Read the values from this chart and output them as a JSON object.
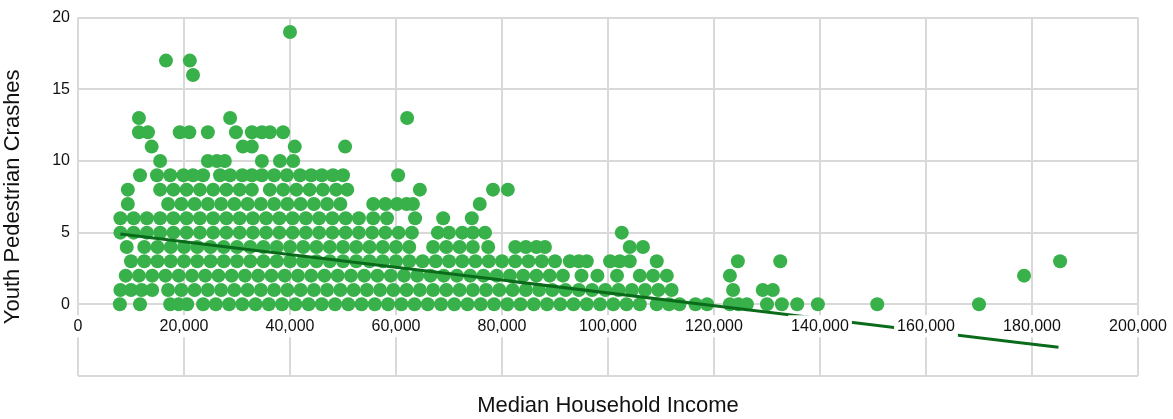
{
  "chart_data": {
    "type": "scatter",
    "xlabel": "Median Household Income",
    "ylabel": "Youth Pedestrian Crashes",
    "xlim": [
      0,
      200000
    ],
    "ylim": [
      -5,
      20
    ],
    "xticks": [
      0,
      {
        "value": 20000,
        "label": "20,000"
      },
      {
        "value": 40000,
        "label": "40,000"
      },
      {
        "value": 60000,
        "label": "60,000"
      },
      {
        "value": 80000,
        "label": "80,000"
      },
      {
        "value": 100000,
        "label": "100,000"
      },
      {
        "value": 120000,
        "label": "120,000"
      },
      {
        "value": 140000,
        "label": "140,000"
      },
      {
        "value": 160000,
        "label": "160,000"
      },
      {
        "value": 180000,
        "label": "180,000"
      },
      {
        "value": 200000,
        "label": "200,000"
      }
    ],
    "yticks": [
      {
        "value": -5,
        "label": null
      },
      0,
      5,
      10,
      15,
      20
    ],
    "grid": true,
    "marker": "circle",
    "series": [
      {
        "color": "#39b14a",
        "x": [
          7900,
          11700,
          17400,
          19000,
          20600,
          23600,
          26000,
          28500,
          31000,
          33500,
          36000,
          38500,
          41000,
          43500,
          46000,
          48500,
          51000,
          53500,
          56000,
          58500,
          61000,
          63500,
          66000,
          68500,
          71000,
          73500,
          76000,
          78500,
          81000,
          83500,
          86000,
          88500,
          91000,
          93500,
          96000,
          98500,
          101000,
          103500,
          106000,
          109200,
          111500,
          113500,
          116500,
          118700,
          123000,
          124600,
          126200,
          130000,
          132800,
          135700,
          139600,
          150800,
          170000
        ],
        "values": [
          0,
          0,
          0,
          0,
          0,
          0,
          0,
          0,
          0,
          0,
          0,
          0,
          0,
          0,
          0,
          0,
          0,
          0,
          0,
          0,
          0,
          0,
          0,
          0,
          0,
          0,
          0,
          0,
          0,
          0,
          0,
          0,
          0,
          0,
          0,
          0,
          0,
          0,
          0,
          0,
          0,
          0,
          0,
          0,
          0,
          0,
          0,
          0,
          0,
          0,
          0,
          0,
          0
        ]
      },
      {
        "color": "#39b14a",
        "x": [
          8000,
          10000,
          12000,
          14000,
          17000,
          19500,
          22000,
          24500,
          27000,
          29500,
          32000,
          34500,
          37000,
          39500,
          42000,
          44500,
          47000,
          49500,
          52000,
          54500,
          57000,
          59500,
          62000,
          64500,
          67000,
          69500,
          72000,
          74500,
          77000,
          79500,
          82000,
          84500,
          87000,
          89500,
          92000,
          94500,
          97000,
          99500,
          102000,
          104500,
          107000,
          109500,
          112000,
          123600,
          129200,
          131100
        ],
        "values": [
          1,
          1,
          1,
          1,
          1,
          1,
          1,
          1,
          1,
          1,
          1,
          1,
          1,
          1,
          1,
          1,
          1,
          1,
          1,
          1,
          1,
          1,
          1,
          1,
          1,
          1,
          1,
          1,
          1,
          1,
          1,
          1,
          1,
          1,
          1,
          1,
          1,
          1,
          1,
          1,
          1,
          1,
          1,
          1,
          1,
          1
        ]
      },
      {
        "color": "#39b14a",
        "x": [
          9000,
          11500,
          14000,
          16500,
          19000,
          21500,
          24000,
          26500,
          29000,
          31500,
          34000,
          36500,
          39000,
          41500,
          44000,
          46500,
          49000,
          51500,
          54000,
          56500,
          59000,
          61500,
          64000,
          66500,
          69000,
          71500,
          74000,
          76500,
          79000,
          81500,
          84000,
          86500,
          89000,
          91500,
          95000,
          98000,
          101700,
          106000,
          108500,
          111100,
          123000,
          178500
        ],
        "values": [
          2,
          2,
          2,
          2,
          2,
          2,
          2,
          2,
          2,
          2,
          2,
          2,
          2,
          2,
          2,
          2,
          2,
          2,
          2,
          2,
          2,
          2,
          2,
          2,
          2,
          2,
          2,
          2,
          2,
          2,
          2,
          2,
          2,
          2,
          2,
          2,
          2,
          2,
          2,
          2,
          2,
          2
        ]
      },
      {
        "color": "#39b14a",
        "x": [
          10000,
          12500,
          15000,
          17500,
          20000,
          22500,
          25000,
          27500,
          30000,
          32500,
          35000,
          37500,
          40000,
          42500,
          45000,
          47500,
          50000,
          52500,
          55000,
          57500,
          60000,
          62500,
          65000,
          67500,
          70000,
          72500,
          75000,
          77500,
          80000,
          82500,
          85000,
          87500,
          90000,
          92800,
          94500,
          96000,
          100400,
          102200,
          104100,
          109200,
          124500,
          132500,
          185300
        ],
        "values": [
          3,
          3,
          3,
          3,
          3,
          3,
          3,
          3,
          3,
          3,
          3,
          3,
          3,
          3,
          3,
          3,
          3,
          3,
          3,
          3,
          3,
          3,
          3,
          3,
          3,
          3,
          3,
          3,
          3,
          3,
          3,
          3,
          3,
          3,
          3,
          3,
          3,
          3,
          3,
          3,
          3,
          3,
          3
        ]
      },
      {
        "color": "#39b14a",
        "x": [
          9200,
          12500,
          15000,
          17500,
          20000,
          22500,
          25000,
          27500,
          30000,
          32500,
          35000,
          37500,
          40000,
          42500,
          45000,
          47500,
          50000,
          52500,
          55000,
          57500,
          60000,
          62500,
          67000,
          69500,
          72000,
          74500,
          77400,
          82500,
          84500,
          86500,
          88100,
          104100,
          106600
        ],
        "values": [
          4,
          4,
          4,
          4,
          4,
          4,
          4,
          4,
          4,
          4,
          4,
          4,
          4,
          4,
          4,
          4,
          4,
          4,
          4,
          4,
          4,
          4,
          4,
          4,
          4,
          4,
          4,
          4,
          4,
          4,
          4,
          4,
          4
        ]
      },
      {
        "color": "#39b14a",
        "x": [
          8000,
          10500,
          13000,
          15500,
          18000,
          20500,
          23000,
          25500,
          28000,
          30500,
          33000,
          35500,
          38000,
          40500,
          43000,
          45500,
          48000,
          50500,
          53000,
          55500,
          58000,
          60500,
          63000,
          67900,
          70000,
          72500,
          74500,
          76800,
          102600
        ],
        "values": [
          5,
          5,
          5,
          5,
          5,
          5,
          5,
          5,
          5,
          5,
          5,
          5,
          5,
          5,
          5,
          5,
          5,
          5,
          5,
          5,
          5,
          5,
          5,
          5,
          5,
          5,
          5,
          5,
          5
        ]
      },
      {
        "color": "#39b14a",
        "x": [
          8000,
          10500,
          13000,
          15500,
          18000,
          20500,
          23000,
          25500,
          28000,
          30500,
          33000,
          35500,
          38000,
          40500,
          43000,
          45500,
          48000,
          50500,
          53000,
          55700,
          58300,
          63600,
          68900,
          74300
        ],
        "values": [
          6,
          6,
          6,
          6,
          6,
          6,
          6,
          6,
          6,
          6,
          6,
          6,
          6,
          6,
          6,
          6,
          6,
          6,
          6,
          6,
          6,
          6,
          6,
          6
        ]
      },
      {
        "color": "#39b14a",
        "x": [
          9400,
          17000,
          19500,
          22000,
          24500,
          27000,
          29500,
          32000,
          34500,
          37000,
          39500,
          42000,
          44500,
          47000,
          49500,
          55700,
          58000,
          60200,
          62000,
          63200,
          75800
        ],
        "values": [
          7,
          7,
          7,
          7,
          7,
          7,
          7,
          7,
          7,
          7,
          7,
          7,
          7,
          7,
          7,
          7,
          7,
          7,
          7,
          7,
          7
        ]
      },
      {
        "color": "#39b14a",
        "x": [
          9400,
          15500,
          18000,
          20500,
          23000,
          25500,
          28000,
          30500,
          32800,
          36200,
          38700,
          41200,
          43700,
          46200,
          48700,
          50800,
          64500,
          78300,
          81100
        ],
        "values": [
          8,
          8,
          8,
          8,
          8,
          8,
          8,
          8,
          8,
          8,
          8,
          8,
          8,
          8,
          8,
          8,
          8,
          8,
          8
        ]
      },
      {
        "color": "#39b14a",
        "x": [
          11700,
          14900,
          17400,
          19900,
          21700,
          23600,
          26800,
          28700,
          31000,
          32800,
          34700,
          37000,
          39400,
          41900,
          44000,
          46000,
          48100,
          50000,
          60400
        ],
        "values": [
          9,
          9,
          9,
          9,
          9,
          9,
          9,
          9,
          9,
          9,
          9,
          9,
          9,
          9,
          9,
          9,
          9,
          9,
          9
        ]
      },
      {
        "color": "#39b14a",
        "x": [
          15500,
          24500,
          26200,
          27700,
          34700,
          38100,
          40600
        ],
        "values": [
          10,
          10,
          10,
          10,
          10,
          10,
          10
        ]
      },
      {
        "color": "#39b14a",
        "x": [
          13900,
          31100,
          32800,
          40900,
          50400
        ],
        "values": [
          11,
          11,
          11,
          11,
          11
        ]
      },
      {
        "color": "#39b14a",
        "x": [
          11500,
          13200,
          19200,
          21000,
          24500,
          29800,
          32800,
          34700,
          36200,
          38700
        ],
        "values": [
          12,
          12,
          12,
          12,
          12,
          12,
          12,
          12,
          12,
          12
        ]
      },
      {
        "color": "#39b14a",
        "x": [
          11500,
          28700,
          62100
        ],
        "values": [
          13,
          13,
          13
        ]
      },
      {
        "color": "#39b14a",
        "x": [
          21700
        ],
        "values": [
          16
        ]
      },
      {
        "color": "#39b14a",
        "x": [
          16600,
          21100
        ],
        "values": [
          17,
          17
        ]
      },
      {
        "color": "#39b14a",
        "x": [
          40000
        ],
        "values": [
          19
        ]
      },
      {
        "type": "line",
        "marker": "none",
        "color": "#0a6b1a",
        "x": [
          8000,
          185000
        ],
        "values": [
          4.9,
          -3.0
        ]
      }
    ]
  }
}
